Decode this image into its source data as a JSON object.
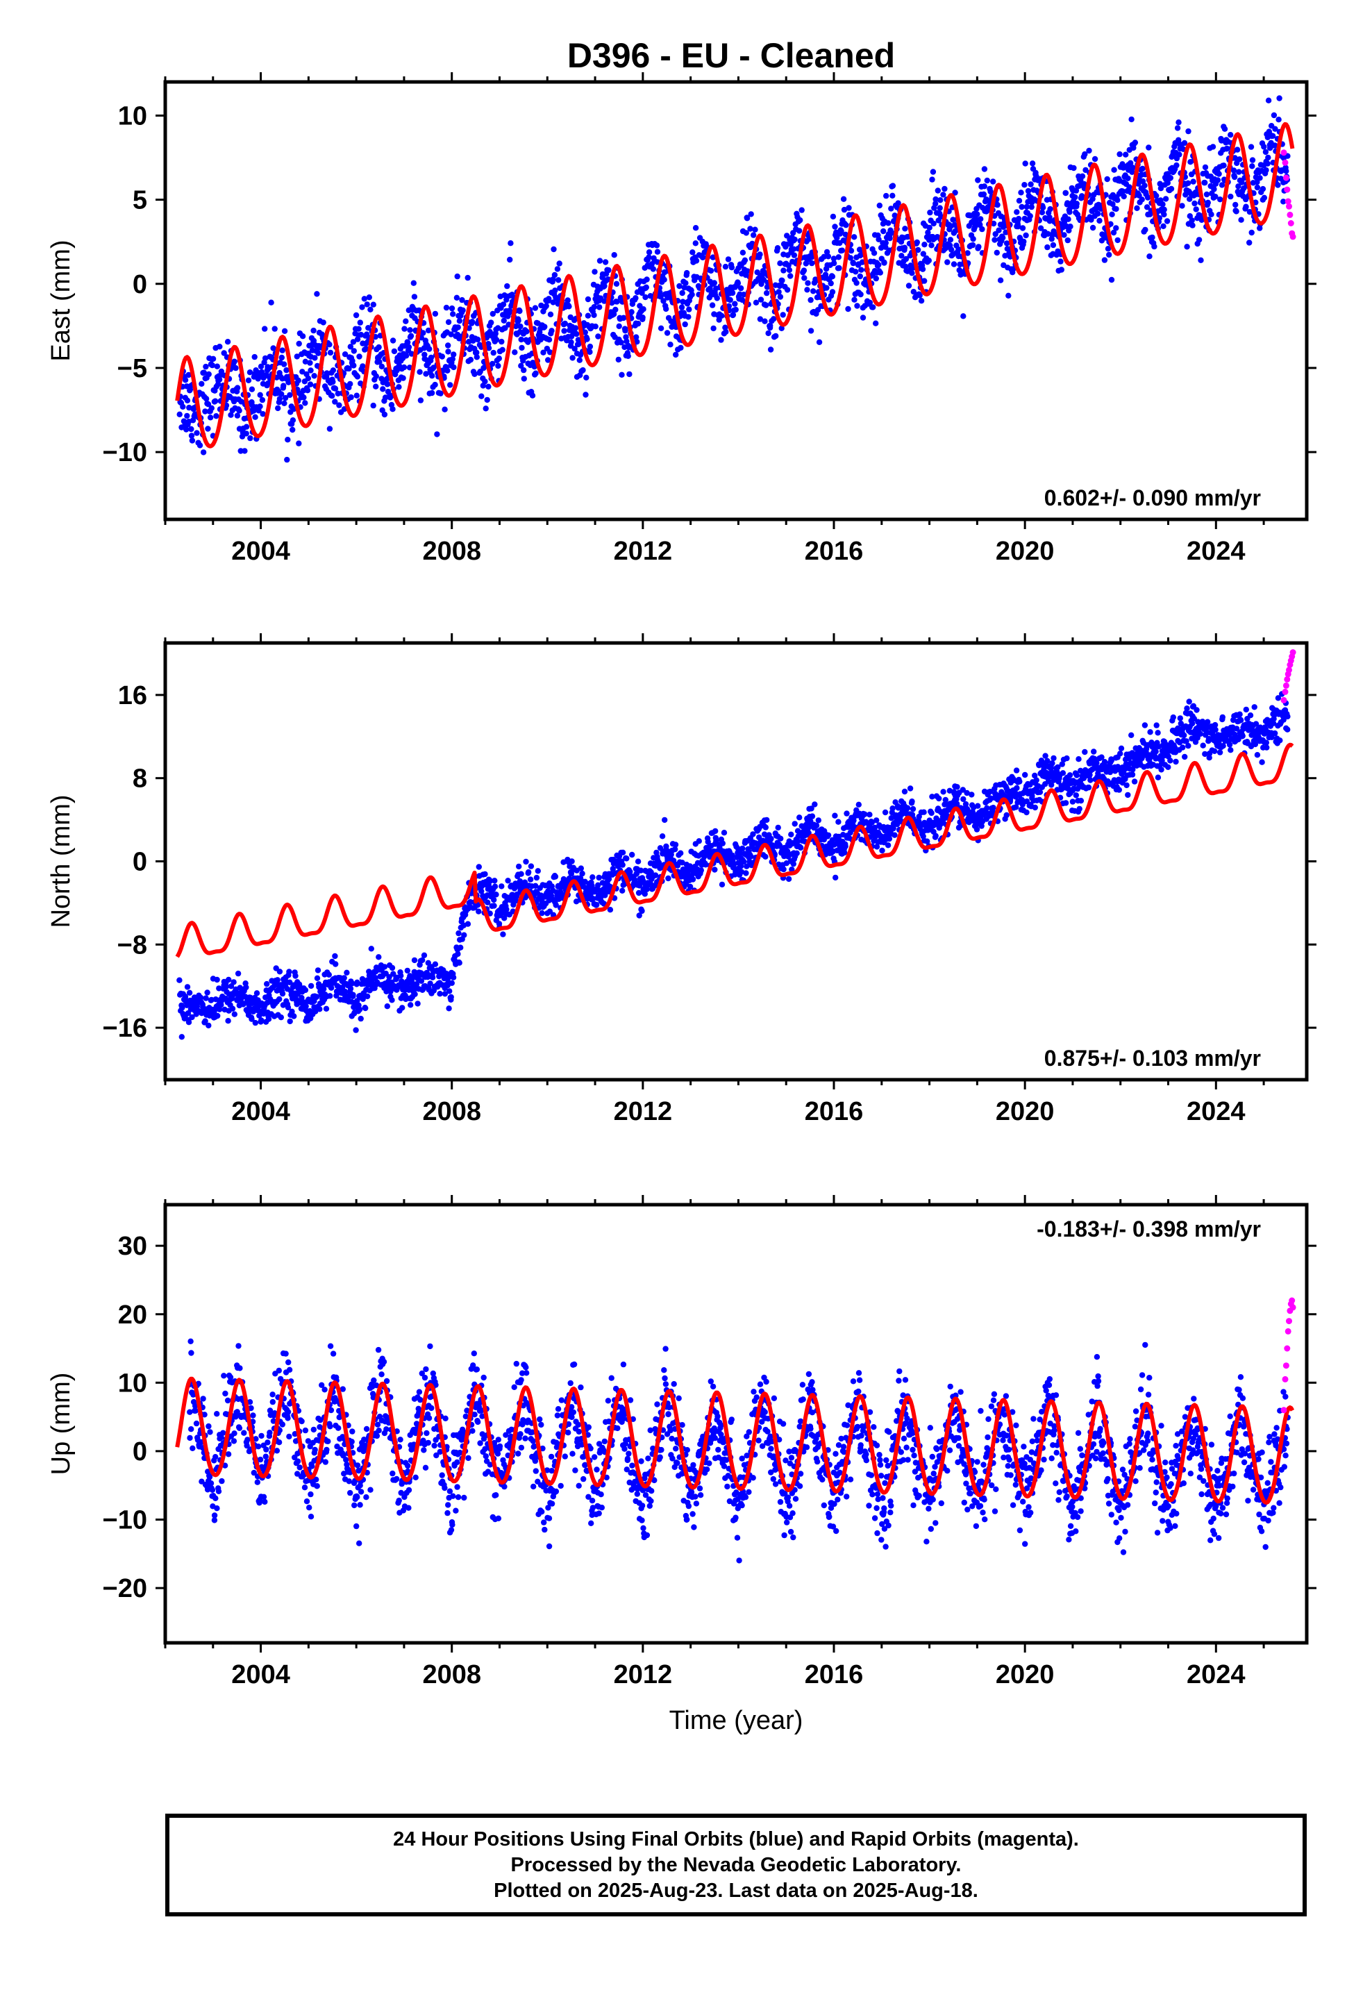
{
  "title": "D396  - EU - Cleaned",
  "colors": {
    "final_orbits": "#0000ff",
    "rapid_orbits": "#ff00ff",
    "model_fit": "#ff0000",
    "frame": "#000000"
  },
  "chart_data": [
    {
      "type": "scatter",
      "component": "East",
      "ylabel": "East (mm)",
      "xlabel": "",
      "xlim": [
        2002.0,
        2025.9
      ],
      "ylim": [
        -14,
        12
      ],
      "x_ticks": [
        2004,
        2008,
        2012,
        2016,
        2020,
        2024
      ],
      "y_ticks": [
        10,
        5,
        0,
        -5,
        -10
      ],
      "rate_label": "0.602+/- 0.090 mm/yr",
      "rate_label_position": "bottom-right",
      "series": [
        {
          "name": "Final Orbits",
          "kind": "daily_positions",
          "x": [
            2002.3,
            2002.7,
            2003.2,
            2003.7,
            2004.2,
            2004.7,
            2005.2,
            2005.7,
            2006.2,
            2006.7,
            2007.2,
            2007.7,
            2008.2,
            2008.7,
            2009.2,
            2009.7,
            2010.2,
            2010.7,
            2011.2,
            2011.7,
            2012.2,
            2012.7,
            2013.2,
            2013.7,
            2014.2,
            2014.7,
            2015.2,
            2015.7,
            2016.2,
            2016.7,
            2017.2,
            2017.7,
            2018.2,
            2018.7,
            2019.2,
            2019.7,
            2020.2,
            2020.7,
            2021.2,
            2021.7,
            2022.2,
            2022.7,
            2023.2,
            2023.7,
            2024.2,
            2024.7,
            2025.2,
            2025.5
          ],
          "y": [
            -6.5,
            -7.5,
            -5.5,
            -7.8,
            -4.5,
            -7.0,
            -3.8,
            -6.5,
            -3.2,
            -6.2,
            -2.5,
            -5.8,
            -1.8,
            -5.0,
            -1.2,
            -4.5,
            -0.5,
            -4.0,
            0.2,
            -3.2,
            0.8,
            -2.6,
            1.5,
            -2.0,
            2.0,
            -1.5,
            2.5,
            -0.8,
            3.2,
            -0.2,
            3.8,
            0.5,
            4.5,
            1.0,
            5.0,
            1.8,
            5.6,
            2.5,
            6.2,
            3.0,
            6.8,
            3.6,
            7.5,
            4.2,
            8.0,
            4.8,
            8.8,
            6.0
          ],
          "noise_amplitude_mm": 2.2
        },
        {
          "name": "Rapid Orbits",
          "kind": "daily_positions",
          "x": [
            2025.42,
            2025.45,
            2025.47,
            2025.49,
            2025.51,
            2025.53,
            2025.55,
            2025.57,
            2025.59,
            2025.61
          ],
          "y": [
            7.8,
            7.2,
            6.3,
            5.6,
            4.9,
            4.6,
            4.1,
            3.6,
            3.0,
            2.8
          ]
        },
        {
          "name": "Model Fit",
          "kind": "line",
          "start_year": 2002.25,
          "end_year": 2025.6,
          "reference_year": 2014.0,
          "intercept_mm": -0.5,
          "rate_mm_per_yr": 0.602,
          "annual_amplitude_mm": 2.8,
          "annual_peak_year_fraction": 0.45,
          "semiannual_amplitude_mm": 0.3
        }
      ]
    },
    {
      "type": "scatter",
      "component": "North",
      "ylabel": "North (mm)",
      "xlabel": "",
      "xlim": [
        2002.0,
        2025.9
      ],
      "ylim": [
        -21,
        21
      ],
      "x_ticks": [
        2004,
        2008,
        2012,
        2016,
        2020,
        2024
      ],
      "y_ticks": [
        16,
        8,
        0,
        -8,
        -16
      ],
      "rate_label": "0.875+/- 0.103 mm/yr",
      "rate_label_position": "bottom-right",
      "series": [
        {
          "name": "Final Orbits",
          "kind": "daily_positions",
          "x": [
            2002.3,
            2003.0,
            2003.5,
            2004.0,
            2004.5,
            2005.0,
            2005.5,
            2006.0,
            2006.5,
            2007.0,
            2007.5,
            2008.0,
            2008.3,
            2008.7,
            2009.0,
            2009.5,
            2010.0,
            2010.5,
            2011.0,
            2011.5,
            2012.0,
            2012.5,
            2013.0,
            2013.5,
            2014.0,
            2014.5,
            2015.0,
            2015.5,
            2016.0,
            2016.5,
            2017.0,
            2017.5,
            2018.0,
            2018.5,
            2019.0,
            2019.5,
            2020.0,
            2020.5,
            2021.0,
            2021.5,
            2022.0,
            2022.5,
            2023.0,
            2023.5,
            2024.0,
            2024.5,
            2025.0,
            2025.5
          ],
          "y": [
            -13.5,
            -14.0,
            -12.5,
            -14.5,
            -12.0,
            -13.8,
            -11.5,
            -13.5,
            -11.0,
            -12.5,
            -10.8,
            -12.0,
            -4.0,
            -2.5,
            -5.0,
            -2.0,
            -4.0,
            -1.5,
            -3.5,
            -0.5,
            -2.5,
            0.5,
            -1.5,
            1.5,
            -0.5,
            2.5,
            0.5,
            3.5,
            1.0,
            4.0,
            2.0,
            5.0,
            3.0,
            5.5,
            4.0,
            6.5,
            6.0,
            8.5,
            7.0,
            9.0,
            8.5,
            10.5,
            10.5,
            13.5,
            11.5,
            13.0,
            12.0,
            14.5
          ],
          "noise_amplitude_mm": 1.8
        },
        {
          "name": "Rapid Orbits",
          "kind": "daily_positions",
          "x": [
            2025.42,
            2025.45,
            2025.47,
            2025.49,
            2025.51,
            2025.53,
            2025.55,
            2025.57,
            2025.59,
            2025.61
          ],
          "y": [
            15.5,
            16.3,
            16.9,
            17.5,
            18.0,
            18.4,
            18.9,
            19.3,
            19.7,
            20.1
          ]
        },
        {
          "name": "Model Fit",
          "kind": "line",
          "start_year": 2002.25,
          "end_year": 2025.6,
          "reference_year": 2014.0,
          "intercept_mm": -1.0,
          "rate_mm_per_yr": 0.875,
          "annual_amplitude_mm": 1.6,
          "annual_peak_year_fraction": 0.55,
          "semiannual_amplitude_mm": 0.5,
          "offsets": [
            {
              "year": 2008.5,
              "step_mm": 3.0
            }
          ]
        }
      ]
    },
    {
      "type": "scatter",
      "component": "Up",
      "ylabel": "Up (mm)",
      "xlabel": "Time (year)",
      "xlim": [
        2002.0,
        2025.9
      ],
      "ylim": [
        -28,
        36
      ],
      "x_ticks": [
        2004,
        2008,
        2012,
        2016,
        2020,
        2024
      ],
      "y_ticks": [
        30,
        20,
        10,
        0,
        -10,
        -20
      ],
      "rate_label": "-0.183+/- 0.398 mm/yr",
      "rate_label_position": "top-right",
      "series": [
        {
          "name": "Final Orbits",
          "kind": "daily_positions",
          "x": [
            2002.5,
            2003.0,
            2003.5,
            2004.0,
            2004.5,
            2005.0,
            2005.5,
            2006.0,
            2006.5,
            2007.0,
            2007.5,
            2008.0,
            2008.5,
            2009.0,
            2009.5,
            2010.0,
            2010.5,
            2011.0,
            2011.5,
            2012.0,
            2012.5,
            2013.0,
            2013.5,
            2014.0,
            2014.5,
            2015.0,
            2015.5,
            2016.0,
            2016.5,
            2017.0,
            2017.5,
            2018.0,
            2018.5,
            2019.0,
            2019.5,
            2020.0,
            2020.5,
            2021.0,
            2021.5,
            2022.0,
            2022.5,
            2023.0,
            2023.5,
            2024.0,
            2024.5,
            2025.0,
            2025.5
          ],
          "y": [
            10.0,
            -5.0,
            10.0,
            -4.5,
            9.5,
            -5.0,
            9.0,
            -5.5,
            9.0,
            -5.0,
            8.5,
            -6.0,
            8.5,
            -6.0,
            7.5,
            -6.5,
            7.5,
            -6.5,
            7.0,
            -7.0,
            7.0,
            -7.0,
            6.5,
            -7.5,
            6.5,
            -7.5,
            6.5,
            -7.5,
            6.0,
            -8.0,
            6.0,
            -8.0,
            6.0,
            -8.0,
            6.0,
            -8.0,
            6.0,
            -8.5,
            5.5,
            -8.5,
            5.5,
            -8.5,
            5.5,
            -8.5,
            5.0,
            -9.0,
            5.0
          ],
          "noise_amplitude_mm": 6.0
        },
        {
          "name": "Rapid Orbits",
          "kind": "daily_positions",
          "x": [
            2025.42,
            2025.45,
            2025.47,
            2025.49,
            2025.51,
            2025.53,
            2025.55,
            2025.57,
            2025.59,
            2025.61
          ],
          "y": [
            6.0,
            10.5,
            12.5,
            15.0,
            17.5,
            19.0,
            20.5,
            21.5,
            22.0,
            21.0
          ]
        },
        {
          "name": "Model Fit",
          "kind": "line",
          "start_year": 2002.25,
          "end_year": 2025.6,
          "reference_year": 2014.0,
          "intercept_mm": 1.0,
          "rate_mm_per_yr": -0.183,
          "annual_amplitude_mm": 7.0,
          "annual_peak_year_fraction": 0.55,
          "semiannual_amplitude_mm": 0.5
        }
      ]
    }
  ],
  "footer": {
    "line1": "24 Hour Positions Using Final Orbits (blue) and Rapid Orbits (magenta).",
    "line2": "Processed by the Nevada Geodetic Laboratory.",
    "line3": "Plotted on 2025-Aug-23. Last data on 2025-Aug-18."
  }
}
